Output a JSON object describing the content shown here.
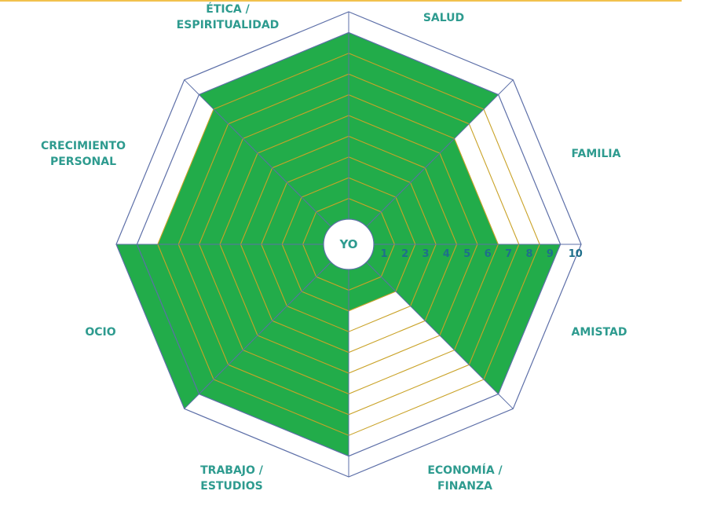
{
  "chart_data": {
    "type": "radar",
    "title": "",
    "center_label": "YO",
    "scale": {
      "min": 0,
      "max": 10,
      "ticks": [
        "1",
        "2",
        "3",
        "4",
        "5",
        "6",
        "7",
        "8",
        "9",
        "10"
      ]
    },
    "categories": [
      {
        "lines": [
          "SALUD"
        ]
      },
      {
        "lines": [
          "FAMILIA"
        ]
      },
      {
        "lines": [
          "AMISTAD"
        ]
      },
      {
        "lines": [
          "ECONOMÍA /",
          "FINANZA"
        ]
      },
      {
        "lines": [
          "TRABAJO /",
          "ESTUDIOS"
        ]
      },
      {
        "lines": [
          "OCIO"
        ]
      },
      {
        "lines": [
          "CRECIMIENTO",
          "PERSONAL"
        ]
      },
      {
        "lines": [
          "ÉTICA /",
          "ESPIRITUALIDAD"
        ]
      }
    ],
    "series": [
      {
        "values": [
          9,
          6,
          9,
          2,
          9,
          10,
          8,
          9
        ]
      }
    ],
    "colors": {
      "fill": "#22ac4a",
      "grid_inner": "#c9a227",
      "grid_outer": "#5d6fa8",
      "labels": "#2e9b8f",
      "ticks": "#1f6f8b"
    }
  }
}
